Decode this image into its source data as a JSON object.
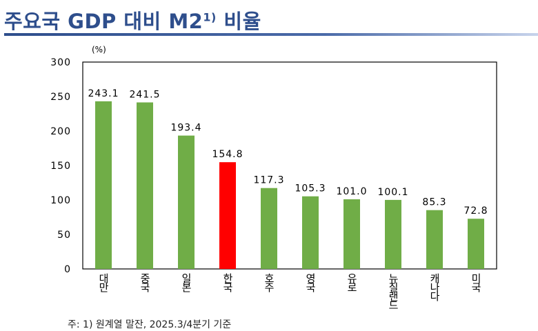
{
  "title": {
    "text": "주요국 GDP 대비 M2",
    "superscript": "1)",
    "suffix": " 비율"
  },
  "note": "주: 1) 원계열 말잔, 2025.3/4분기 기준",
  "colors": {
    "default_bar": "#70ad47",
    "highlight_bar": "#ff0000",
    "title": "#2e4e8c"
  },
  "chart_data": {
    "type": "bar",
    "ylabel": "(%)",
    "ylim": [
      0,
      300
    ],
    "yticks": [
      0,
      50,
      100,
      150,
      200,
      250,
      300
    ],
    "grid": false,
    "categories": [
      "대만",
      "중국",
      "일본",
      "한국",
      "호주",
      "영국",
      "유로",
      "뉴질랜드",
      "캐나다",
      "미국"
    ],
    "values": [
      243.1,
      241.5,
      193.4,
      154.8,
      117.3,
      105.3,
      101.0,
      100.1,
      85.3,
      72.8
    ],
    "value_labels": [
      "243.1",
      "241.5",
      "193.4",
      "154.8",
      "117.3",
      "105.3",
      "101.0",
      "100.1",
      "85.3",
      "72.8"
    ],
    "highlight": "한국"
  }
}
